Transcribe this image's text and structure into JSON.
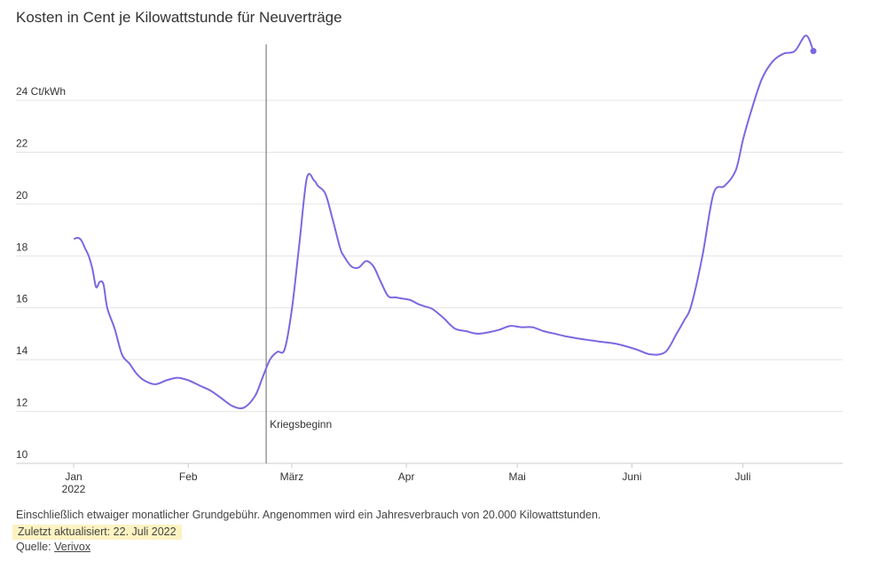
{
  "title": "Kosten in Cent je Kilowattstunde für Neuverträge",
  "footer": {
    "note": "Einschließlich etwaiger monatlicher Grundgebühr. Angenommen wird ein Jahresverbrauch von 20.000 Kilowattstunden.",
    "updated": "Zuletzt aktualisiert: 22. Juli 2022",
    "source_label": "Quelle:",
    "source_link": "Verivox"
  },
  "colors": {
    "line": "#7b68e0",
    "grid": "#e4e4e4",
    "axis": "#cccccc",
    "annotation": "#666666"
  },
  "chart_data": {
    "type": "line",
    "title": "Kosten in Cent je Kilowattstunde für Neuverträge",
    "ylabel": "",
    "xlabel": "",
    "ylim": [
      10,
      26.5
    ],
    "xlim": [
      "2022-01-01",
      "2022-07-28"
    ],
    "yticks": [
      10,
      12,
      14,
      16,
      18,
      20,
      22,
      24
    ],
    "ytick_labels": [
      "10",
      "12",
      "14",
      "16",
      "18",
      "20",
      "22",
      "24 Ct/kWh"
    ],
    "xticks": [
      "2022-01-01",
      "2022-02-01",
      "2022-03-01",
      "2022-04-01",
      "2022-05-01",
      "2022-06-01",
      "2022-07-01"
    ],
    "xtick_labels": [
      "Jan",
      "Feb",
      "März",
      "Apr",
      "Mai",
      "Juni",
      "Juli"
    ],
    "xtick_sublabel": "2022",
    "grid": true,
    "annotations": [
      {
        "x": "2022-02-24",
        "label": "Kriegsbeginn"
      }
    ],
    "series": [
      {
        "x": [
          "2022-01-03",
          "2022-01-04",
          "2022-01-05",
          "2022-01-06",
          "2022-01-07",
          "2022-01-08",
          "2022-01-09",
          "2022-01-10",
          "2022-01-11",
          "2022-01-12",
          "2022-01-14",
          "2022-01-16",
          "2022-01-18",
          "2022-01-20",
          "2022-01-22",
          "2022-01-25",
          "2022-01-28",
          "2022-01-31",
          "2022-02-03",
          "2022-02-06",
          "2022-02-09",
          "2022-02-12",
          "2022-02-15",
          "2022-02-18",
          "2022-02-21",
          "2022-02-23",
          "2022-02-25",
          "2022-02-27",
          "2022-03-01",
          "2022-03-03",
          "2022-03-05",
          "2022-03-07",
          "2022-03-09",
          "2022-03-10",
          "2022-03-12",
          "2022-03-14",
          "2022-03-16",
          "2022-03-17",
          "2022-03-19",
          "2022-03-21",
          "2022-03-23",
          "2022-03-25",
          "2022-03-27",
          "2022-03-29",
          "2022-03-31",
          "2022-04-02",
          "2022-04-04",
          "2022-04-06",
          "2022-04-08",
          "2022-04-10",
          "2022-04-13",
          "2022-04-16",
          "2022-04-19",
          "2022-04-22",
          "2022-04-25",
          "2022-04-28",
          "2022-05-01",
          "2022-05-04",
          "2022-05-07",
          "2022-05-10",
          "2022-05-13",
          "2022-05-16",
          "2022-05-20",
          "2022-05-25",
          "2022-05-30",
          "2022-06-04",
          "2022-06-08",
          "2022-06-12",
          "2022-06-15",
          "2022-06-17",
          "2022-06-19",
          "2022-06-22",
          "2022-06-25",
          "2022-06-28",
          "2022-07-01",
          "2022-07-03",
          "2022-07-05",
          "2022-07-08",
          "2022-07-11",
          "2022-07-14",
          "2022-07-17",
          "2022-07-20",
          "2022-07-22"
        ],
        "values": [
          18.65,
          18.7,
          18.6,
          18.3,
          18.0,
          17.5,
          16.8,
          17.0,
          16.9,
          16.0,
          15.2,
          14.2,
          13.85,
          13.45,
          13.2,
          13.05,
          13.2,
          13.3,
          13.2,
          13.0,
          12.8,
          12.5,
          12.2,
          12.15,
          12.6,
          13.3,
          14.0,
          14.3,
          14.4,
          16.0,
          18.5,
          21.0,
          20.9,
          20.7,
          20.4,
          19.4,
          18.3,
          18.0,
          17.6,
          17.55,
          17.8,
          17.6,
          17.0,
          16.45,
          16.4,
          16.35,
          16.3,
          16.15,
          16.05,
          15.95,
          15.6,
          15.2,
          15.1,
          15.0,
          15.05,
          15.15,
          15.3,
          15.25,
          15.25,
          15.1,
          15.0,
          14.9,
          14.8,
          14.7,
          14.6,
          14.4,
          14.2,
          14.3,
          15.0,
          15.5,
          16.1,
          18.0,
          20.4,
          20.7,
          21.3,
          22.5,
          23.5,
          24.8,
          25.5,
          25.8,
          25.9,
          26.5,
          25.9
        ]
      }
    ]
  }
}
